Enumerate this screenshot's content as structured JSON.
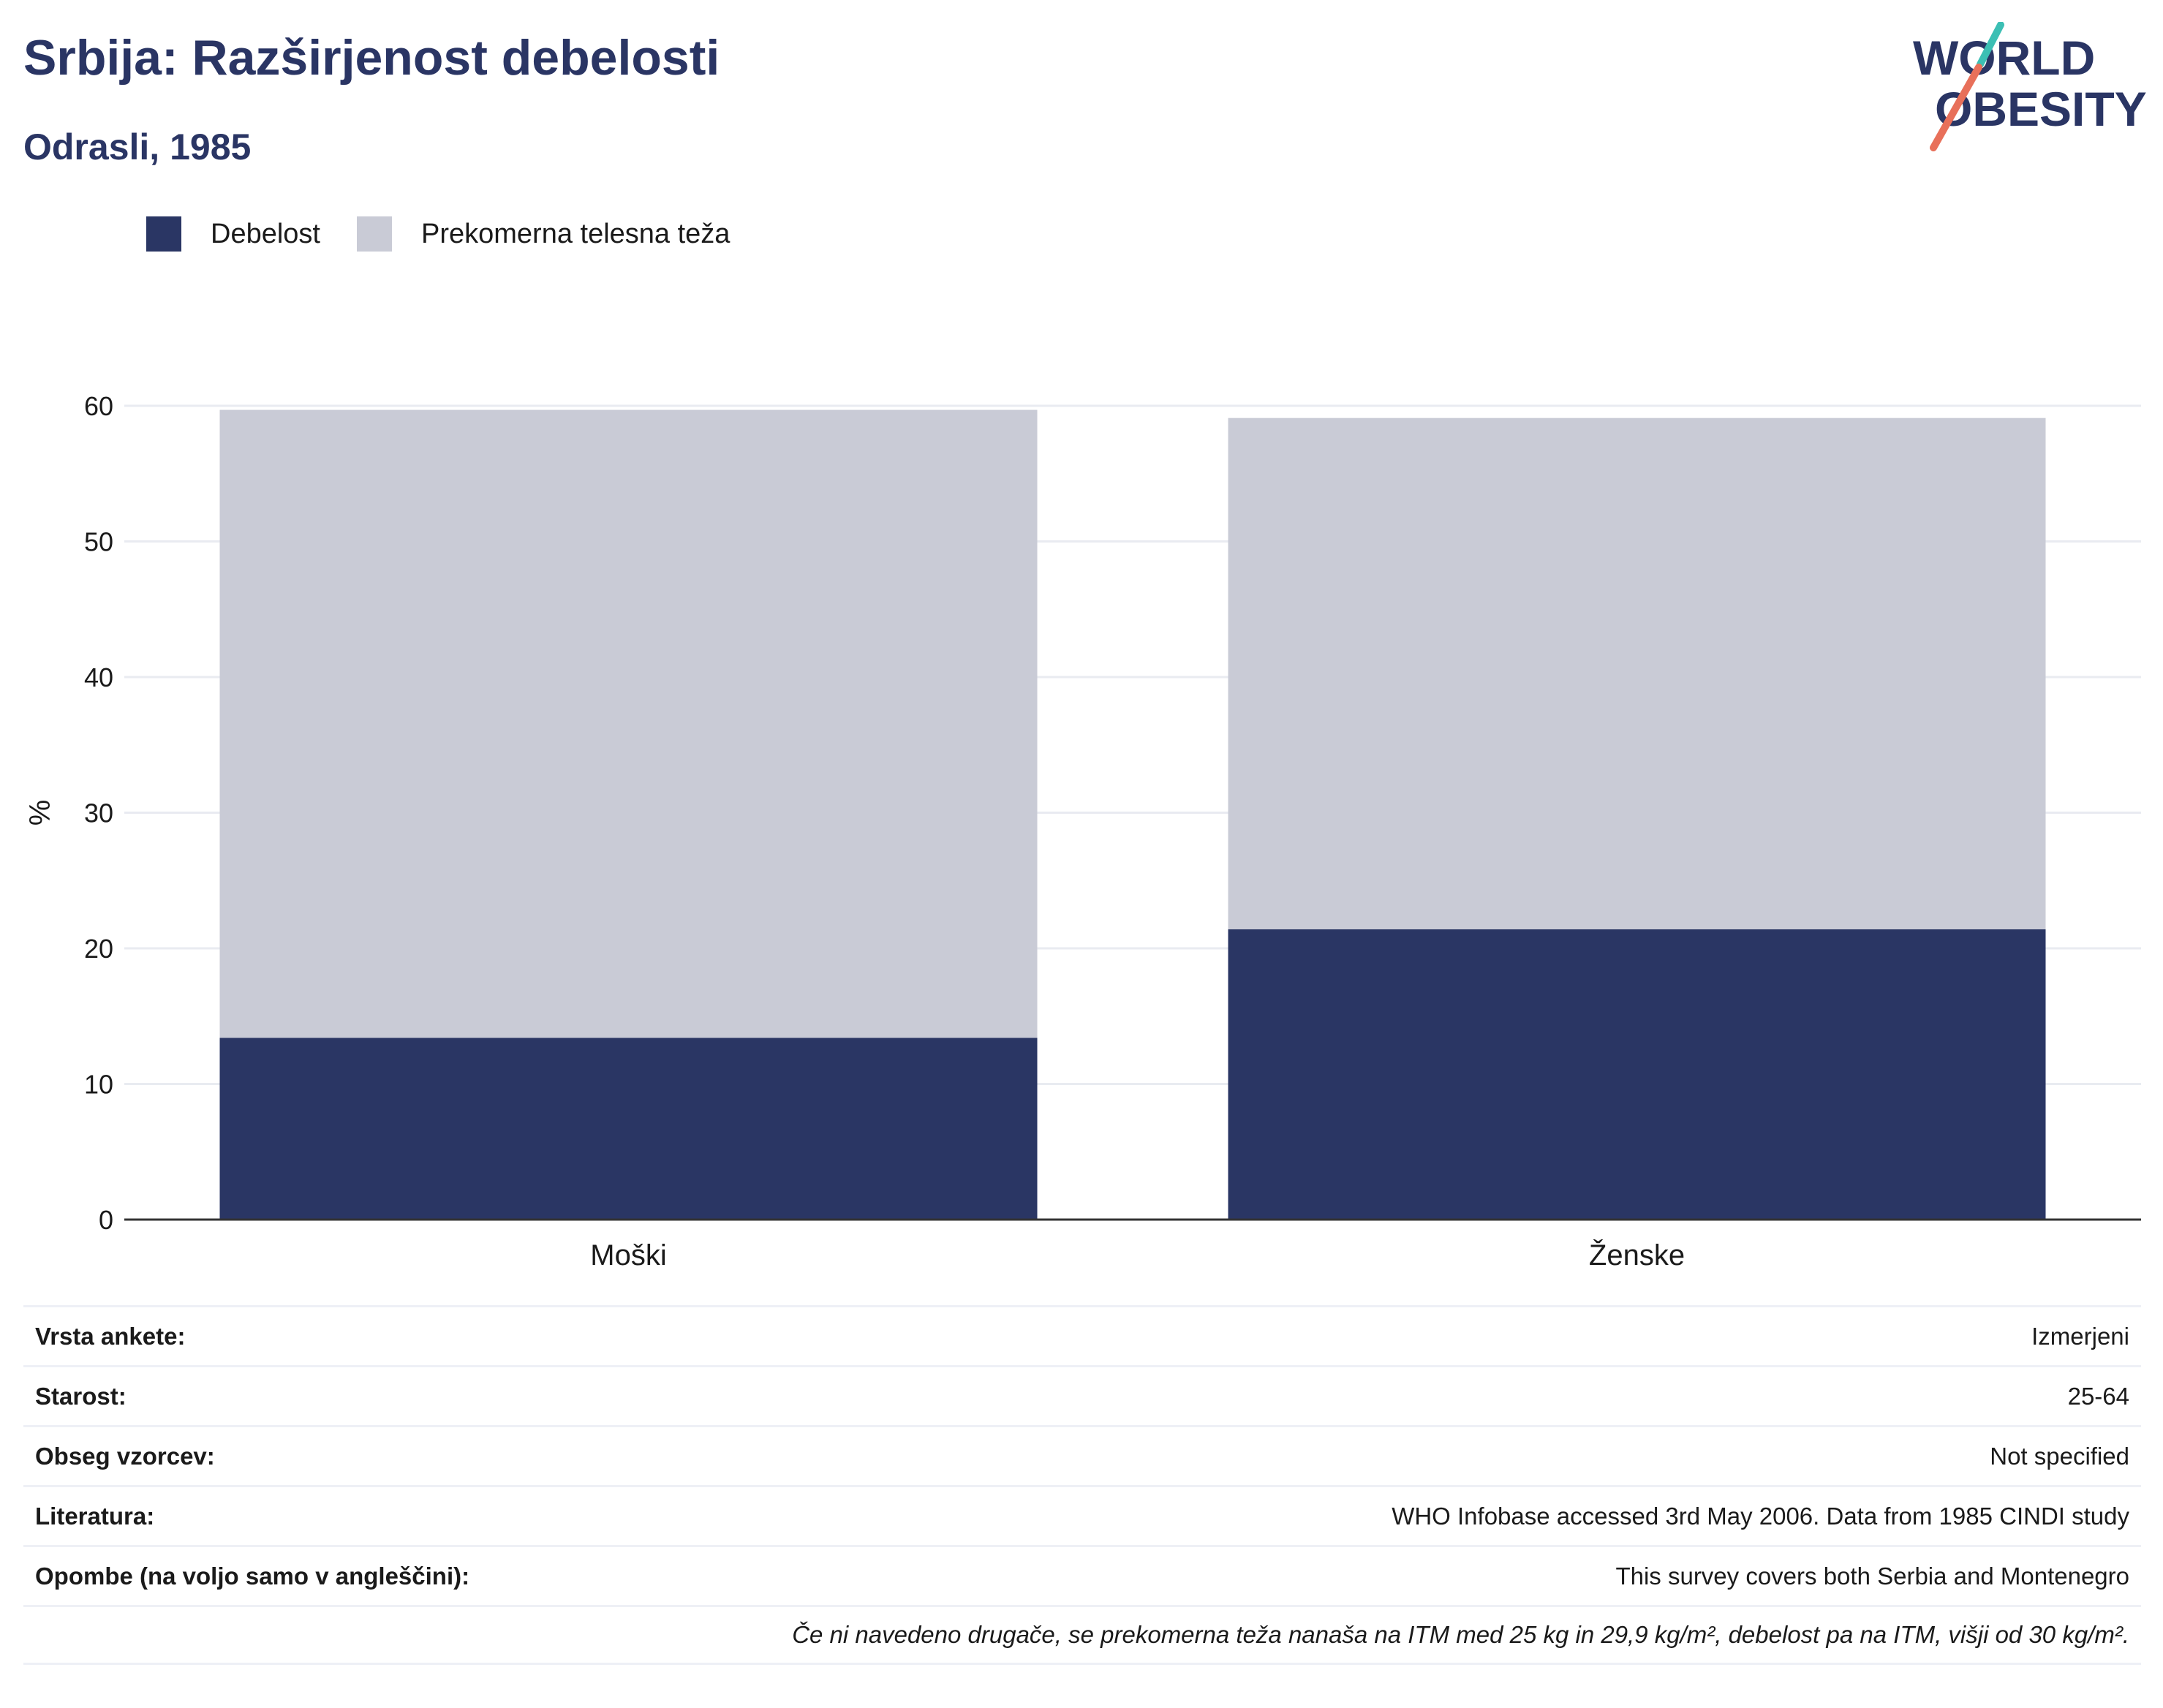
{
  "header": {
    "title": "Srbija: Razširjenost debelosti",
    "subtitle": "Odrasli, 1985"
  },
  "logo": {
    "line1": "WORLD",
    "line2": "OBESITY",
    "accent1": "#3cbfb4",
    "accent2": "#e8705a"
  },
  "colors": {
    "obesity": "#2a3664",
    "overweight": "#c9cbd6",
    "text_dark": "#2a3564"
  },
  "chart_data": {
    "type": "bar",
    "stacked": true,
    "categories": [
      "Moški",
      "Ženske"
    ],
    "series": [
      {
        "name": "Debelost",
        "values": [
          13.4,
          21.4
        ],
        "color": "#2a3664"
      },
      {
        "name": "Prekomerna telesna teža",
        "values": [
          46.3,
          37.7
        ],
        "color": "#c9cbd6"
      }
    ],
    "ylabel": "%",
    "ylim": [
      0,
      60
    ],
    "yticks": [
      "0",
      "10",
      "20",
      "30",
      "40",
      "50",
      "60"
    ],
    "grid": true,
    "legend_position": "top-left"
  },
  "info": {
    "rows": [
      {
        "label": "Vrsta ankete:",
        "value": "Izmerjeni"
      },
      {
        "label": "Starost:",
        "value": "25-64"
      },
      {
        "label": "Obseg vzorcev:",
        "value": "Not specified"
      },
      {
        "label": "Literatura:",
        "value": "WHO Infobase accessed 3rd May 2006. Data from 1985 CINDI study"
      },
      {
        "label": "Opombe (na voljo samo v angleščini):",
        "value": "This survey covers both Serbia and Montenegro"
      }
    ],
    "note": "Če ni navedeno drugače, se prekomerna teža nanaša na ITM med 25 kg in 29,9 kg/m², debelost pa na ITM, višji od 30 kg/m²."
  }
}
